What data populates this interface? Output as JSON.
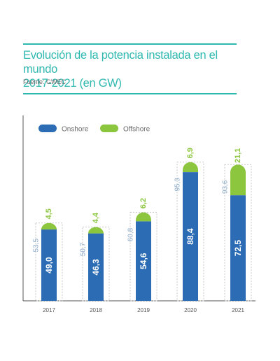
{
  "header": {
    "title_line1": "Evolución de la potencia instalada en el mundo",
    "title_line2": "2017-2021 (en GW)",
    "source": "Fuente: GWEC"
  },
  "colors": {
    "accent": "#2fb8b0",
    "onshore": "#2b6cb4",
    "offshore": "#8cc63f",
    "total_text": "#8aa9c8",
    "dashed_border": "#c8c8c8"
  },
  "chart_data": {
    "type": "bar",
    "stacked": true,
    "categories": [
      "2017",
      "2018",
      "2019",
      "2020",
      "2021"
    ],
    "series": [
      {
        "name": "Onshore",
        "values": [
          49.0,
          46.3,
          54.6,
          88.4,
          72.5
        ],
        "labels": [
          "49,0",
          "46,3",
          "54,6",
          "88,4",
          "72,5"
        ]
      },
      {
        "name": "Offshore",
        "values": [
          4.5,
          4.4,
          6.2,
          6.9,
          21.1
        ],
        "labels": [
          "4,5",
          "4,4",
          "6,2",
          "6,9",
          "21,1"
        ]
      }
    ],
    "totals": [
      53.5,
      50.7,
      60.8,
      95.3,
      93.6
    ],
    "total_labels": [
      "53,5",
      "50,7",
      "60,8",
      "95,3",
      "93,6"
    ],
    "ylim": [
      0,
      100
    ],
    "legend_position": "top-left",
    "grid": false
  }
}
